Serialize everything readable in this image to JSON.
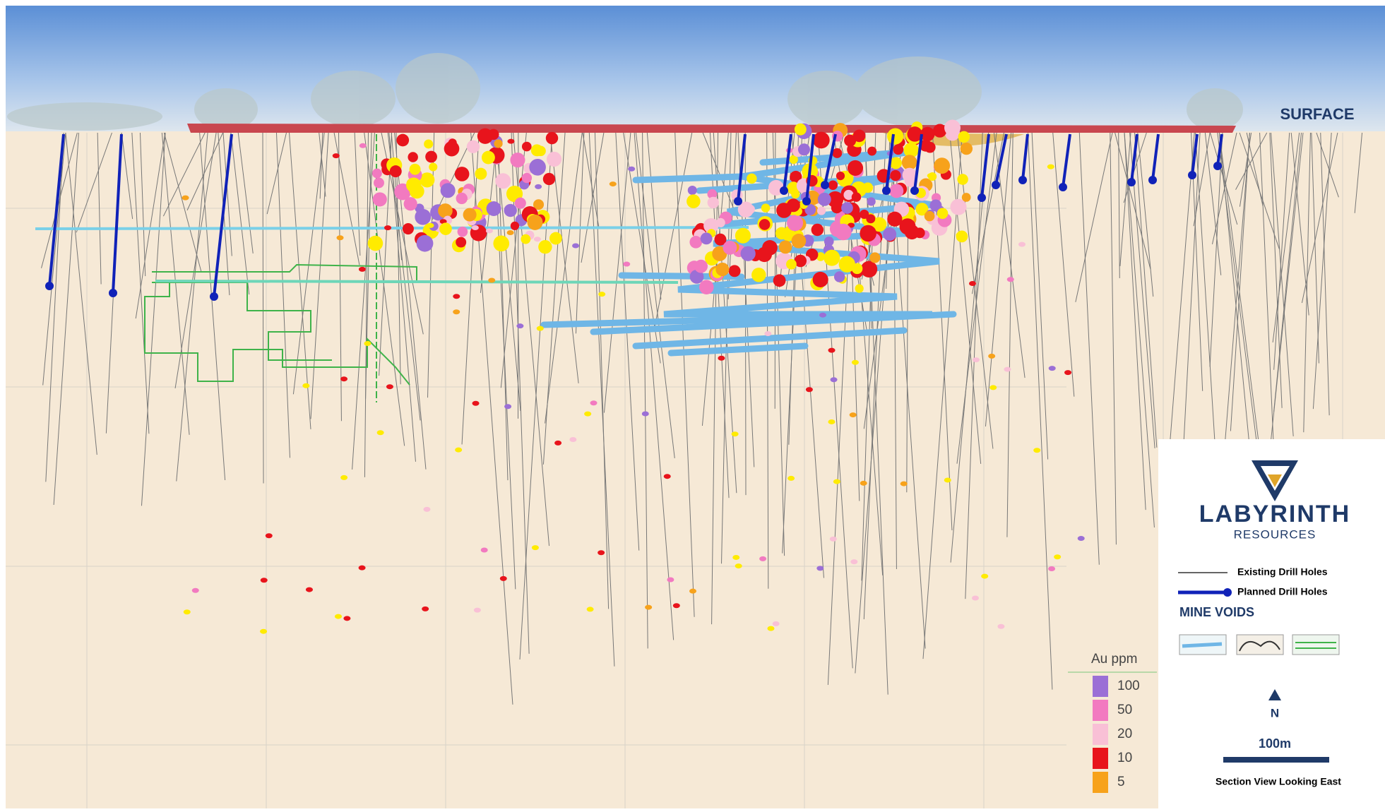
{
  "section": {
    "surface_label": "SURFACE"
  },
  "logo": {
    "name": "LABYRINTH",
    "subtitle": "RESOURCES"
  },
  "legend": {
    "existing": "Existing Drill Holes",
    "planned": "Planned Drill Holes",
    "voids_title": "MINE VOIDS",
    "north": "N",
    "scale": "100m",
    "view": "Section View Looking East"
  },
  "grade_legend": {
    "title": "Au ppm",
    "items": [
      {
        "label": "100",
        "color": "#9b6fd6"
      },
      {
        "label": "50",
        "color": "#f27ac0"
      },
      {
        "label": "20",
        "color": "#f9c0d6"
      },
      {
        "label": "10",
        "color": "#e8141c"
      },
      {
        "label": "5",
        "color": "#f7a21b"
      }
    ]
  }
}
